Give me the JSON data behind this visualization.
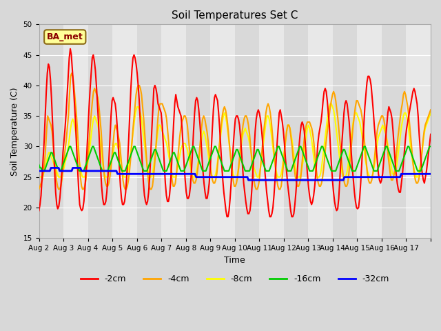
{
  "title": "Soil Temperatures Set C",
  "xlabel": "Time",
  "ylabel": "Soil Temperature (C)",
  "ylim": [
    15,
    50
  ],
  "yticks": [
    15,
    20,
    25,
    30,
    35,
    40,
    45,
    50
  ],
  "annotation_text": "BA_met",
  "annotation_color": "#8B0000",
  "annotation_bg": "#ffff99",
  "annotation_border": "#8B6914",
  "series_colors": {
    "-2cm": "#ff0000",
    "-4cm": "#ffa500",
    "-8cm": "#ffff00",
    "-16cm": "#00cc00",
    "-32cm": "#0000ff"
  },
  "series_lw": {
    "-2cm": 1.5,
    "-4cm": 1.5,
    "-8cm": 1.5,
    "-16cm": 1.5,
    "-32cm": 2.0
  },
  "x_tick_labels": [
    "Aug 2",
    "Aug 3",
    "Aug 4",
    "Aug 5",
    "Aug 6",
    "Aug 7",
    "Aug 8",
    "Aug 9",
    "Aug 10",
    "Aug 11",
    "Aug 12",
    "Aug 13",
    "Aug 14",
    "Aug 15",
    "Aug 16",
    "Aug 17"
  ],
  "num_days": 16,
  "neg2cm": [
    19.5,
    20.5,
    22.0,
    25.0,
    28.0,
    31.0,
    35.0,
    39.0,
    42.0,
    43.5,
    43.0,
    41.0,
    38.0,
    34.0,
    30.0,
    26.0,
    22.5,
    20.5,
    19.8,
    20.2,
    21.5,
    23.5,
    26.0,
    29.0,
    31.0,
    33.0,
    35.5,
    38.5,
    41.5,
    44.5,
    46.0,
    45.0,
    42.5,
    40.0,
    37.0,
    34.0,
    30.0,
    26.5,
    23.0,
    20.5,
    19.8,
    19.5,
    19.8,
    21.0,
    23.0,
    26.0,
    29.5,
    33.0,
    36.5,
    39.5,
    42.0,
    44.5,
    45.0,
    44.0,
    42.5,
    40.0,
    37.0,
    34.0,
    30.0,
    26.5,
    23.5,
    21.5,
    20.5,
    20.5,
    21.0,
    22.5,
    25.0,
    28.0,
    31.5,
    35.0,
    37.5,
    38.0,
    37.5,
    37.0,
    35.5,
    33.0,
    30.0,
    26.5,
    23.5,
    21.5,
    20.5,
    20.5,
    21.0,
    22.5,
    25.0,
    28.0,
    31.5,
    35.5,
    39.5,
    42.5,
    44.5,
    45.0,
    44.5,
    43.5,
    42.0,
    40.0,
    37.5,
    34.0,
    30.5,
    27.0,
    24.0,
    22.0,
    21.0,
    20.5,
    21.0,
    22.5,
    25.0,
    28.5,
    32.5,
    36.0,
    39.5,
    40.0,
    39.5,
    38.5,
    37.0,
    36.5,
    36.0,
    35.5,
    33.5,
    30.5,
    27.0,
    24.0,
    22.0,
    21.0,
    21.0,
    22.0,
    24.0,
    27.0,
    30.5,
    34.0,
    37.0,
    38.5,
    37.5,
    36.5,
    36.0,
    35.5,
    35.0,
    33.0,
    30.0,
    27.0,
    24.5,
    22.5,
    21.5,
    21.5,
    22.0,
    23.5,
    26.0,
    29.0,
    32.5,
    35.5,
    37.5,
    38.0,
    37.5,
    36.0,
    34.0,
    31.5,
    28.5,
    26.0,
    24.0,
    22.5,
    21.5,
    21.5,
    22.5,
    24.0,
    26.5,
    29.5,
    33.0,
    36.0,
    38.0,
    38.5,
    38.0,
    37.5,
    35.5,
    33.0,
    30.0,
    27.0,
    24.5,
    22.5,
    21.0,
    19.5,
    18.5,
    18.5,
    19.5,
    21.5,
    24.0,
    27.0,
    30.0,
    32.5,
    34.5,
    35.0,
    35.0,
    34.5,
    33.5,
    31.5,
    29.0,
    26.5,
    24.0,
    22.5,
    21.0,
    19.8,
    19.0,
    19.0,
    19.5,
    21.0,
    23.5,
    26.5,
    29.5,
    32.5,
    34.5,
    35.5,
    36.0,
    35.5,
    34.5,
    33.0,
    31.0,
    28.5,
    26.5,
    24.5,
    22.5,
    21.0,
    19.5,
    18.5,
    18.5,
    19.0,
    20.0,
    22.0,
    24.5,
    27.5,
    30.5,
    33.0,
    35.5,
    36.0,
    35.0,
    34.0,
    32.5,
    30.5,
    28.0,
    26.0,
    24.0,
    22.5,
    21.0,
    19.5,
    18.5,
    18.5,
    19.0,
    20.5,
    22.5,
    25.0,
    27.5,
    30.0,
    32.0,
    33.5,
    34.0,
    33.5,
    32.5,
    30.5,
    28.0,
    25.5,
    23.5,
    22.0,
    21.0,
    20.5,
    21.0,
    22.0,
    23.5,
    25.5,
    28.0,
    30.5,
    32.0,
    33.0,
    34.0,
    35.5,
    37.5,
    39.0,
    39.5,
    39.0,
    37.5,
    35.5,
    33.5,
    30.0,
    27.0,
    24.5,
    22.5,
    21.0,
    20.0,
    19.5,
    19.8,
    21.5,
    24.5,
    27.5,
    30.5,
    33.0,
    35.5,
    37.0,
    37.5,
    37.0,
    35.5,
    34.0,
    31.5,
    29.0,
    26.5,
    24.5,
    22.5,
    21.0,
    20.0,
    19.8,
    20.0,
    21.5,
    24.0,
    27.0,
    30.5,
    33.5,
    36.5,
    38.5,
    40.5,
    41.5,
    41.5,
    41.0,
    40.0,
    38.0,
    36.0,
    33.5,
    31.5,
    29.5,
    27.5,
    25.5,
    24.5,
    24.0,
    24.5,
    25.5,
    27.5,
    29.5,
    31.5,
    33.5,
    35.5,
    36.5,
    36.0,
    35.5,
    34.5,
    32.5,
    30.0,
    27.5,
    25.5,
    24.0,
    23.0,
    22.5,
    22.5,
    24.0,
    25.5,
    27.5,
    29.5,
    31.5,
    33.0,
    34.0,
    35.0,
    36.0,
    37.0,
    38.0,
    39.0,
    39.5,
    39.0,
    38.0,
    37.0,
    35.0,
    32.0,
    29.5,
    27.0,
    25.5,
    24.5,
    24.0,
    25.0,
    26.0,
    27.5,
    29.0,
    30.5,
    32.0
  ],
  "neg4cm": [
    23.0,
    23.5,
    24.0,
    24.5,
    25.5,
    27.0,
    29.5,
    32.5,
    35.0,
    34.5,
    34.0,
    33.5,
    32.5,
    30.5,
    28.5,
    26.5,
    24.5,
    23.5,
    23.0,
    23.0,
    23.5,
    24.5,
    26.0,
    28.0,
    29.5,
    31.0,
    33.0,
    35.0,
    38.5,
    41.5,
    42.0,
    41.5,
    40.0,
    38.0,
    36.0,
    33.5,
    30.5,
    27.5,
    25.0,
    23.5,
    23.0,
    23.0,
    23.5,
    24.5,
    26.5,
    28.5,
    31.0,
    33.5,
    35.5,
    37.5,
    39.0,
    39.5,
    39.0,
    38.5,
    38.0,
    36.5,
    34.5,
    32.5,
    29.5,
    27.0,
    25.0,
    24.0,
    23.5,
    23.5,
    24.0,
    25.0,
    26.5,
    28.5,
    30.5,
    32.5,
    33.5,
    33.0,
    32.5,
    31.5,
    30.5,
    28.5,
    26.5,
    24.5,
    23.5,
    23.0,
    23.0,
    23.5,
    24.5,
    26.0,
    28.0,
    30.0,
    32.5,
    34.5,
    36.5,
    38.5,
    39.5,
    40.0,
    40.0,
    39.5,
    38.5,
    36.5,
    34.5,
    32.0,
    29.5,
    27.0,
    25.0,
    23.5,
    23.0,
    23.0,
    23.5,
    25.0,
    27.0,
    29.5,
    32.0,
    34.5,
    36.5,
    37.0,
    37.0,
    37.0,
    36.5,
    36.0,
    35.5,
    34.5,
    32.5,
    30.5,
    28.0,
    26.0,
    24.5,
    23.5,
    23.5,
    24.0,
    25.5,
    27.5,
    29.5,
    31.5,
    33.0,
    34.0,
    34.5,
    35.0,
    35.0,
    34.5,
    33.5,
    31.5,
    29.5,
    27.5,
    25.5,
    24.5,
    24.0,
    24.0,
    24.5,
    25.5,
    27.0,
    29.0,
    31.0,
    33.0,
    34.5,
    35.0,
    34.5,
    33.5,
    32.5,
    31.0,
    29.0,
    27.0,
    25.5,
    24.5,
    24.0,
    24.0,
    24.5,
    25.5,
    27.5,
    29.5,
    31.5,
    33.5,
    35.0,
    36.0,
    36.5,
    36.0,
    35.0,
    33.5,
    31.5,
    29.5,
    27.5,
    25.5,
    24.5,
    23.5,
    23.5,
    24.0,
    25.0,
    26.5,
    28.5,
    30.5,
    32.0,
    33.5,
    34.5,
    35.0,
    35.0,
    34.5,
    33.5,
    32.0,
    30.0,
    28.0,
    26.0,
    24.5,
    23.5,
    23.0,
    23.0,
    23.5,
    24.5,
    26.5,
    28.5,
    30.5,
    32.5,
    34.0,
    35.5,
    36.5,
    37.0,
    36.5,
    35.5,
    34.0,
    32.0,
    30.0,
    28.0,
    26.0,
    24.5,
    23.5,
    23.0,
    23.0,
    23.5,
    25.0,
    27.0,
    29.0,
    31.0,
    32.5,
    33.5,
    33.5,
    33.0,
    31.5,
    30.0,
    28.0,
    26.5,
    25.0,
    24.0,
    23.5,
    23.5,
    24.0,
    25.0,
    27.0,
    29.0,
    31.0,
    32.5,
    33.5,
    34.0,
    34.0,
    34.0,
    33.5,
    33.0,
    32.0,
    30.5,
    28.5,
    26.5,
    25.0,
    24.0,
    23.5,
    23.5,
    24.0,
    25.0,
    26.5,
    28.5,
    30.5,
    32.0,
    33.5,
    35.0,
    36.5,
    37.5,
    38.5,
    39.0,
    38.5,
    37.5,
    36.0,
    34.5,
    32.5,
    30.5,
    28.5,
    26.5,
    25.0,
    24.0,
    23.5,
    23.5,
    24.0,
    25.5,
    27.5,
    29.5,
    31.5,
    33.5,
    35.0,
    36.5,
    37.5,
    37.5,
    37.0,
    36.5,
    36.0,
    35.0,
    33.5,
    31.5,
    29.5,
    27.5,
    25.5,
    24.5,
    24.0,
    24.0,
    24.5,
    25.5,
    27.0,
    29.0,
    31.0,
    32.5,
    33.5,
    34.0,
    34.5,
    35.0,
    35.0,
    34.5,
    33.5,
    32.0,
    30.5,
    28.5,
    27.0,
    25.5,
    24.5,
    24.5,
    25.0,
    26.0,
    27.5,
    29.5,
    31.5,
    33.0,
    34.5,
    36.0,
    37.0,
    38.5,
    39.0,
    38.5,
    37.5,
    36.5,
    35.0,
    33.0,
    31.0,
    29.0,
    27.0,
    25.5,
    24.5,
    24.0,
    24.0,
    24.5,
    25.5,
    27.0,
    29.0,
    31.0,
    32.5,
    33.5,
    34.0,
    34.5,
    35.0,
    35.5,
    36.0
  ],
  "neg8cm": [
    25.0,
    25.0,
    25.0,
    25.0,
    25.5,
    26.0,
    26.5,
    27.5,
    28.5,
    29.0,
    29.0,
    28.5,
    28.0,
    27.5,
    27.0,
    26.5,
    26.0,
    25.5,
    25.0,
    25.0,
    25.0,
    25.5,
    26.0,
    26.5,
    27.5,
    28.0,
    29.0,
    30.0,
    31.5,
    33.0,
    34.0,
    34.5,
    34.0,
    33.0,
    32.0,
    30.5,
    29.0,
    27.5,
    26.5,
    25.5,
    25.0,
    25.0,
    25.0,
    25.5,
    26.5,
    27.5,
    29.0,
    30.5,
    32.0,
    33.5,
    34.5,
    35.0,
    34.5,
    34.0,
    33.5,
    32.5,
    31.0,
    29.5,
    28.0,
    26.5,
    25.5,
    25.0,
    25.0,
    25.0,
    25.5,
    26.0,
    27.0,
    28.0,
    29.0,
    30.0,
    30.5,
    30.5,
    30.0,
    29.5,
    28.5,
    27.5,
    26.5,
    25.5,
    25.0,
    25.0,
    25.0,
    25.5,
    26.5,
    27.5,
    29.0,
    30.5,
    32.0,
    33.5,
    35.0,
    36.0,
    36.5,
    36.5,
    36.0,
    35.5,
    34.5,
    33.0,
    31.5,
    30.0,
    28.5,
    27.0,
    26.0,
    25.5,
    25.0,
    25.0,
    25.5,
    26.5,
    28.0,
    29.5,
    31.0,
    32.5,
    33.5,
    33.5,
    33.0,
    32.5,
    32.0,
    31.5,
    31.0,
    30.5,
    29.5,
    28.5,
    27.5,
    26.5,
    25.5,
    25.0,
    25.0,
    25.0,
    25.5,
    26.5,
    27.5,
    28.5,
    29.5,
    30.0,
    30.5,
    30.5,
    30.5,
    30.0,
    29.5,
    28.5,
    27.5,
    26.5,
    25.5,
    25.0,
    25.0,
    25.0,
    25.5,
    26.5,
    27.5,
    28.5,
    30.0,
    31.0,
    32.0,
    32.5,
    32.0,
    31.0,
    30.0,
    29.0,
    27.5,
    26.5,
    25.5,
    25.0,
    25.0,
    25.0,
    25.5,
    26.5,
    28.0,
    29.5,
    31.0,
    32.5,
    34.0,
    35.0,
    35.5,
    35.0,
    34.0,
    32.5,
    31.0,
    29.5,
    28.0,
    26.5,
    25.5,
    25.0,
    25.0,
    25.0,
    25.5,
    26.5,
    28.0,
    29.5,
    31.0,
    32.0,
    32.5,
    33.0,
    32.5,
    32.0,
    31.5,
    30.5,
    29.5,
    28.5,
    27.5,
    26.5,
    26.0,
    25.5,
    25.0,
    25.0,
    25.5,
    26.5,
    28.0,
    29.5,
    31.0,
    32.5,
    34.0,
    35.0,
    35.0,
    34.5,
    33.5,
    32.0,
    30.5,
    29.0,
    27.5,
    26.5,
    25.5,
    25.0,
    25.0,
    25.0,
    25.5,
    26.5,
    28.0,
    29.5,
    31.0,
    32.5,
    33.5,
    33.5,
    33.0,
    32.0,
    31.0,
    29.5,
    28.0,
    26.5,
    25.5,
    25.0,
    25.0,
    25.0,
    25.5,
    26.5,
    27.5,
    29.0,
    30.5,
    32.0,
    33.0,
    33.5,
    33.0,
    32.0,
    31.0,
    29.5,
    28.0,
    26.5,
    25.5,
    25.0,
    25.0,
    25.0,
    25.5,
    26.5,
    28.0,
    29.5,
    31.0,
    32.5,
    34.0,
    35.5,
    36.5,
    37.0,
    37.0,
    36.5,
    36.0,
    35.0,
    33.5,
    32.0,
    30.5,
    29.0,
    27.5,
    26.5,
    25.5,
    25.0,
    25.0,
    25.0,
    25.5,
    26.5,
    28.0,
    29.5,
    31.5,
    32.5,
    34.0,
    35.0,
    35.5,
    35.5,
    35.0,
    34.5,
    34.0,
    33.0,
    32.0,
    30.5,
    29.5,
    28.0,
    27.0,
    26.0,
    25.5,
    25.0,
    25.0,
    25.0,
    25.5,
    26.5,
    27.5,
    29.0,
    30.5,
    31.5,
    32.0,
    32.5,
    33.0,
    33.5,
    33.0,
    32.5,
    32.0,
    31.0,
    30.0,
    28.5,
    27.5,
    26.5,
    25.5,
    25.5,
    25.5,
    26.0,
    27.0,
    28.5,
    30.0,
    31.5,
    33.0,
    34.0,
    35.0,
    35.5,
    35.5,
    35.0,
    34.0,
    32.5,
    31.0,
    29.5,
    28.0,
    27.0,
    26.0,
    25.5,
    25.0,
    25.0,
    25.5,
    26.5,
    27.5,
    29.0,
    30.5,
    32.0,
    33.0,
    33.5,
    34.0,
    34.5,
    35.0,
    35.5
  ],
  "neg16cm": [
    27.0,
    26.5,
    26.5,
    26.0,
    26.0,
    26.0,
    26.5,
    27.0,
    27.5,
    28.0,
    28.5,
    29.0,
    29.0,
    28.5,
    28.0,
    27.5,
    27.0,
    26.5,
    26.5,
    26.0,
    26.0,
    26.5,
    27.0,
    27.5,
    28.0,
    28.5,
    29.0,
    29.5,
    30.0,
    30.0,
    29.5,
    29.0,
    28.5,
    28.0,
    27.5,
    27.0,
    26.5,
    26.0,
    26.0,
    26.0,
    26.0,
    26.0,
    26.5,
    27.0,
    27.5,
    28.0,
    28.5,
    29.0,
    29.5,
    30.0,
    30.0,
    29.5,
    29.0,
    28.5,
    28.0,
    27.5,
    27.0,
    26.5,
    26.0,
    26.0,
    26.0,
    26.0,
    26.0,
    26.0,
    26.5,
    27.0,
    27.5,
    28.0,
    28.5,
    29.0,
    29.0,
    28.5,
    28.0,
    27.5,
    27.0,
    26.5,
    26.0,
    26.0,
    26.0,
    26.0,
    26.5,
    27.0,
    27.5,
    28.0,
    28.5,
    29.0,
    29.5,
    30.0,
    30.0,
    29.5,
    29.0,
    28.5,
    28.0,
    27.5,
    27.0,
    26.5,
    26.0,
    26.0,
    26.0,
    26.0,
    26.5,
    27.0,
    27.5,
    28.0,
    28.5,
    29.0,
    29.5,
    29.5,
    29.0,
    28.5,
    28.0,
    27.5,
    27.0,
    26.5,
    26.0,
    26.0,
    26.0,
    26.0,
    26.5,
    27.0,
    27.5,
    28.0,
    28.5,
    29.0,
    29.0,
    28.5,
    28.0,
    27.5,
    27.0,
    26.5,
    26.0,
    26.0,
    26.0,
    26.0,
    26.5,
    27.0,
    27.5,
    28.0,
    28.5,
    29.0,
    29.5,
    30.0,
    30.0,
    29.5,
    29.0,
    28.5,
    28.0,
    27.5,
    27.0,
    26.5,
    26.0,
    26.0,
    26.0,
    26.0,
    26.5,
    27.0,
    27.5,
    28.0,
    28.5,
    29.0,
    29.5,
    30.0,
    30.0,
    29.5,
    29.0,
    28.5,
    28.0,
    27.5,
    27.0,
    26.5,
    26.0,
    26.0,
    26.0,
    26.0,
    26.0,
    26.5,
    27.0,
    27.5,
    28.0,
    28.5,
    29.0,
    29.5,
    29.5,
    29.0,
    28.5,
    28.0,
    27.5,
    27.0,
    26.5,
    26.0,
    26.0,
    26.0,
    26.0,
    26.0,
    26.5,
    27.0,
    27.5,
    28.0,
    28.5,
    29.0,
    29.5,
    29.5,
    29.0,
    28.5,
    28.0,
    27.5,
    27.0,
    26.5,
    26.0,
    26.0,
    26.0,
    26.0,
    26.5,
    27.0,
    27.5,
    28.0,
    28.5,
    29.0,
    29.5,
    30.0,
    30.0,
    29.5,
    29.0,
    28.5,
    28.0,
    27.5,
    27.0,
    26.5,
    26.0,
    26.0,
    26.0,
    26.0,
    26.5,
    27.0,
    27.5,
    28.0,
    28.5,
    29.0,
    29.5,
    30.0,
    30.0,
    29.5,
    29.0,
    28.5,
    28.0,
    27.5,
    27.0,
    26.5,
    26.0,
    26.0,
    26.0,
    26.0,
    26.5,
    27.0,
    27.5,
    28.0,
    28.5,
    29.0,
    29.5,
    30.0,
    30.0,
    29.5,
    29.0,
    28.5,
    28.0,
    27.5,
    27.0,
    26.5,
    26.0,
    26.0,
    26.0,
    26.0,
    26.0,
    26.5,
    27.0,
    27.5,
    28.0,
    28.5,
    29.0,
    29.5,
    29.5,
    29.0,
    28.5,
    28.0,
    27.5,
    27.0,
    26.5,
    26.0,
    26.0,
    26.0,
    26.0,
    26.5,
    27.0,
    27.5,
    28.0,
    28.5,
    29.0,
    29.5,
    30.0,
    30.0,
    29.5,
    29.0,
    28.5,
    28.0,
    27.5,
    27.0,
    26.5,
    26.0,
    26.0,
    26.0,
    26.0,
    26.5,
    27.0,
    27.5,
    28.0,
    28.5,
    29.0,
    29.5,
    30.0,
    30.0,
    29.5,
    29.0,
    28.5,
    28.0,
    27.5,
    27.0,
    26.5,
    26.0,
    26.0,
    26.0,
    26.0,
    26.5,
    27.0,
    27.5,
    28.0,
    28.5,
    29.0,
    29.5,
    30.0,
    30.0,
    29.5,
    29.0,
    28.5,
    28.0,
    27.5,
    27.0,
    26.5,
    26.0,
    26.0,
    26.0,
    26.0,
    26.5,
    27.0,
    27.5,
    28.0,
    28.5,
    29.0,
    29.5,
    30.0,
    30.0
  ],
  "neg32cm": [
    26.0,
    26.0,
    26.0,
    26.0,
    26.0,
    26.0,
    26.0,
    26.0,
    26.0,
    26.0,
    26.0,
    26.5,
    26.5,
    26.5,
    26.5,
    26.5,
    26.5,
    26.5,
    26.5,
    26.0,
    26.0,
    26.0,
    26.0,
    26.0,
    26.0,
    26.0,
    26.0,
    26.0,
    26.0,
    26.0,
    26.0,
    26.5,
    26.5,
    26.5,
    26.5,
    26.5,
    26.5,
    26.5,
    26.5,
    26.0,
    26.0,
    26.0,
    26.0,
    26.0,
    26.0,
    26.0,
    26.0,
    26.0,
    26.0,
    26.0,
    26.0,
    26.0,
    26.0,
    26.0,
    26.0,
    26.0,
    26.0,
    26.0,
    26.0,
    26.0,
    26.0,
    26.0,
    26.0,
    26.0,
    26.0,
    26.0,
    26.0,
    26.0,
    26.0,
    26.0,
    26.0,
    26.0,
    25.5,
    25.5,
    25.5,
    25.5,
    25.5,
    25.5,
    25.5,
    25.5,
    25.5,
    25.5,
    25.5,
    25.5,
    25.5,
    25.5,
    25.5,
    25.5,
    25.5,
    25.5,
    25.5,
    25.5,
    25.5,
    25.5,
    25.5,
    25.5,
    25.5,
    25.5,
    25.5,
    25.5,
    25.5,
    25.5,
    25.5,
    25.5,
    25.5,
    25.5,
    25.5,
    25.5,
    25.5,
    25.5,
    25.5,
    25.5,
    25.5,
    25.5,
    25.5,
    25.5,
    25.5,
    25.5,
    25.5,
    25.5,
    25.5,
    25.5,
    25.5,
    25.5,
    25.5,
    25.5,
    25.5,
    25.5,
    25.5,
    25.5,
    25.5,
    25.5,
    25.5,
    25.5,
    25.5,
    25.5,
    25.5,
    25.5,
    25.5,
    25.5,
    25.5,
    25.5,
    25.5,
    25.5,
    25.0,
    25.0,
    25.0,
    25.0,
    25.0,
    25.0,
    25.0,
    25.0,
    25.0,
    25.0,
    25.0,
    25.0,
    25.0,
    25.0,
    25.0,
    25.0,
    25.0,
    25.0,
    25.0,
    25.0,
    25.0,
    25.0,
    25.0,
    25.0,
    25.0,
    25.0,
    25.0,
    25.0,
    25.0,
    25.0,
    25.0,
    25.0,
    25.0,
    25.0,
    25.0,
    25.0,
    25.0,
    25.0,
    25.0,
    25.0,
    25.0,
    25.0,
    25.0,
    25.0,
    25.0,
    25.0,
    25.0,
    25.0,
    24.5,
    24.5,
    24.5,
    24.5,
    24.5,
    24.5,
    24.5,
    24.5,
    24.5,
    24.5,
    24.5,
    24.5,
    24.5,
    24.5,
    24.5,
    24.5,
    24.5,
    24.5,
    24.5,
    24.5,
    24.5,
    24.5,
    24.5,
    24.5,
    24.5,
    24.5,
    24.5,
    24.5,
    24.5,
    24.5,
    24.5,
    24.5,
    24.5,
    24.5,
    24.5,
    24.5,
    24.5,
    24.5,
    24.5,
    24.5,
    24.5,
    24.5,
    24.5,
    24.5,
    24.5,
    24.5,
    24.5,
    24.5,
    24.5,
    24.5,
    24.5,
    24.5,
    24.5,
    24.5,
    24.5,
    24.5,
    24.5,
    24.5,
    24.5,
    24.5,
    24.5,
    24.5,
    24.5,
    24.5,
    24.5,
    24.5,
    24.5,
    24.5,
    24.5,
    24.5,
    24.5,
    24.5,
    24.5,
    24.5,
    24.5,
    24.5,
    24.5,
    24.5,
    24.5,
    24.5,
    24.5,
    24.5,
    24.5,
    24.5,
    24.5,
    24.5,
    24.5,
    24.5,
    25.0,
    25.0,
    25.0,
    25.0,
    25.0,
    25.0,
    25.0,
    25.0,
    25.0,
    25.0,
    25.0,
    25.0,
    25.0,
    25.0,
    25.0,
    25.0,
    25.0,
    25.0,
    25.0,
    25.0,
    25.0,
    25.0,
    25.0,
    25.0,
    25.0,
    25.0,
    25.0,
    25.0,
    25.0,
    25.0,
    25.0,
    25.0,
    25.0,
    25.0,
    25.0,
    25.0,
    25.0,
    25.0,
    25.0,
    25.0,
    25.0,
    25.0,
    25.0,
    25.0,
    25.0,
    25.0,
    25.0,
    25.0,
    25.0,
    25.0,
    25.0,
    25.0,
    25.5,
    25.5,
    25.5,
    25.5,
    25.5,
    25.5,
    25.5,
    25.5,
    25.5,
    25.5,
    25.5,
    25.5,
    25.5,
    25.5,
    25.5,
    25.5,
    25.5,
    25.5,
    25.5,
    25.5,
    25.5,
    25.5,
    25.5,
    25.5,
    25.5,
    25.5,
    25.5,
    25.5
  ]
}
